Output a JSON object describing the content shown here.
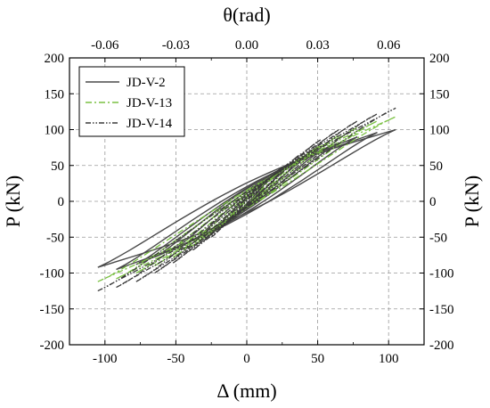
{
  "chart_data": {
    "type": "line",
    "xlabel": "Δ (mm)",
    "ylabel_left": "P (kN)",
    "ylabel_right": "P (kN)",
    "top_xlabel": "θ(rad)",
    "xlim": [
      -125,
      125
    ],
    "ylim": [
      -200,
      200
    ],
    "xticks": [
      "-100",
      "-50",
      "0",
      "50",
      "100"
    ],
    "xtick_values": [
      -100,
      -50,
      0,
      50,
      100
    ],
    "yticks": [
      "-200",
      "-150",
      "-100",
      "-50",
      "0",
      "50",
      "100",
      "150",
      "200"
    ],
    "ytick_values": [
      -200,
      -150,
      -100,
      -50,
      0,
      50,
      100,
      150,
      200
    ],
    "top_ticks": [
      "-0.06",
      "-0.03",
      "0.00",
      "0.03",
      "0.06"
    ],
    "top_tick_values": [
      -100,
      -50,
      0,
      50,
      100
    ],
    "grid": true,
    "legend_position": "top-left",
    "series": [
      {
        "name": "JD-V-2",
        "color": "#4a4a4a",
        "style": "solid",
        "loops": [
          {
            "d": 12,
            "pp": 18,
            "pn": -20,
            "rp": 8,
            "rn": -8
          },
          {
            "d": 25,
            "pp": 40,
            "pn": -42,
            "rp": 15,
            "rn": -14
          },
          {
            "d": 38,
            "pp": 55,
            "pn": -55,
            "rp": 22,
            "rn": -20
          },
          {
            "d": 52,
            "pp": 70,
            "pn": -68,
            "rp": 28,
            "rn": -26
          },
          {
            "d": 65,
            "pp": 82,
            "pn": -78,
            "rp": 32,
            "rn": -30
          },
          {
            "d": 78,
            "pp": 90,
            "pn": -88,
            "rp": 36,
            "rn": -34
          },
          {
            "d": 92,
            "pp": 96,
            "pn": -95,
            "rp": 40,
            "rn": -38
          },
          {
            "d": 105,
            "pp": 100,
            "pn": -92,
            "rp": 42,
            "rn": -40
          }
        ]
      },
      {
        "name": "JD-V-13",
        "color": "#7ac142",
        "style": "dashdot",
        "loops": [
          {
            "d": 12,
            "pp": 20,
            "pn": -22,
            "rp": 6,
            "rn": -6
          },
          {
            "d": 25,
            "pp": 44,
            "pn": -45,
            "rp": 12,
            "rn": -12
          },
          {
            "d": 38,
            "pp": 60,
            "pn": -62,
            "rp": 18,
            "rn": -18
          },
          {
            "d": 52,
            "pp": 78,
            "pn": -78,
            "rp": 22,
            "rn": -22
          },
          {
            "d": 65,
            "pp": 92,
            "pn": -90,
            "rp": 26,
            "rn": -26
          },
          {
            "d": 78,
            "pp": 103,
            "pn": -100,
            "rp": 30,
            "rn": -30
          },
          {
            "d": 92,
            "pp": 112,
            "pn": -108,
            "rp": 33,
            "rn": -33
          },
          {
            "d": 105,
            "pp": 118,
            "pn": -112,
            "rp": 35,
            "rn": -35
          }
        ]
      },
      {
        "name": "JD-V-14",
        "color": "#3a3a3a",
        "style": "dashdotdot",
        "loops": [
          {
            "d": 12,
            "pp": 22,
            "pn": -24,
            "rp": 6,
            "rn": -6
          },
          {
            "d": 25,
            "pp": 48,
            "pn": -50,
            "rp": 12,
            "rn": -12
          },
          {
            "d": 38,
            "pp": 66,
            "pn": -68,
            "rp": 18,
            "rn": -18
          },
          {
            "d": 52,
            "pp": 86,
            "pn": -86,
            "rp": 22,
            "rn": -22
          },
          {
            "d": 65,
            "pp": 100,
            "pn": -100,
            "rp": 26,
            "rn": -26
          },
          {
            "d": 78,
            "pp": 112,
            "pn": -112,
            "rp": 30,
            "rn": -30
          },
          {
            "d": 92,
            "pp": 122,
            "pn": -120,
            "rp": 33,
            "rn": -33
          },
          {
            "d": 105,
            "pp": 130,
            "pn": -125,
            "rp": 35,
            "rn": -35
          }
        ]
      }
    ]
  }
}
